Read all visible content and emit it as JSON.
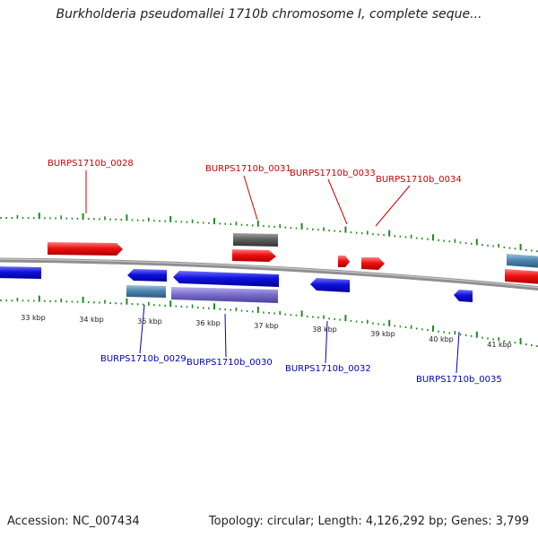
{
  "title": "Burkholderia pseudomallei 1710b chromosome I, complete seque...",
  "accession": "Accession: NC_007434",
  "summary": "Topology: circular; Length: 4,126,292 bp; Genes: 3,799",
  "colors": {
    "forward_gene": "#ee1111",
    "reverse_gene": "#1111dd",
    "steel_gene": "#4f86b0",
    "purple_gene": "#7b70cc",
    "gray_gene": "#606060",
    "backbone": "#909090",
    "ticks": "#1e8a1e",
    "label_top": "#cc0000",
    "label_bottom": "#0000bb"
  },
  "tick_labels": [
    "33 kbp",
    "34 kbp",
    "35 kbp",
    "36 kbp",
    "37 kbp",
    "38 kbp",
    "39 kbp",
    "40 kbp",
    "41 kbp"
  ],
  "gene_labels_top": [
    "BURPS1710b_0028",
    "BURPS1710b_0031",
    "BURPS1710b_0033",
    "BURPS1710b_0034"
  ],
  "gene_labels_bottom": [
    "BURPS1710b_0029",
    "BURPS1710b_0030",
    "BURPS1710b_0032",
    "BURPS1710b_0035"
  ]
}
